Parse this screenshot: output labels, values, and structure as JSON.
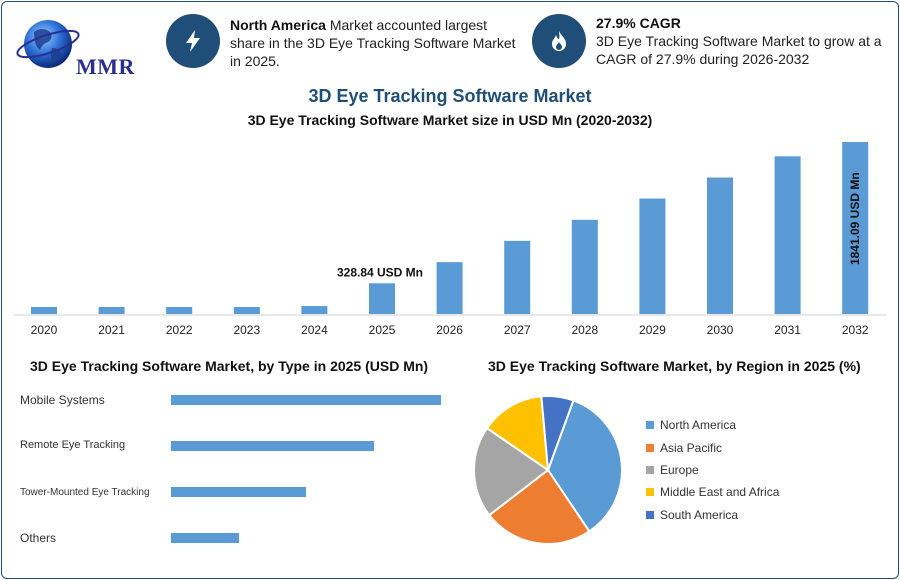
{
  "logo": {
    "text": "MMR"
  },
  "info": [
    {
      "bold": "North America",
      "text": " Market accounted largest share in the 3D Eye Tracking Software Market in 2025."
    },
    {
      "bold": "27.9% CAGR",
      "text": "3D Eye Tracking Software Market to grow at a CAGR of 27.9% during 2026-2032"
    }
  ],
  "title": "3D Eye Tracking Software Market",
  "colors": {
    "primary": "#1f4e79",
    "bar": "#5b9bd5"
  },
  "chart_data": [
    {
      "type": "bar",
      "title": "3D Eye Tracking Software Market size in USD Mn (2020-2032)",
      "categories": [
        "2020",
        "2021",
        "2022",
        "2023",
        "2024",
        "2025",
        "2026",
        "2027",
        "2028",
        "2029",
        "2030",
        "2031",
        "2032"
      ],
      "values": [
        70,
        70,
        70,
        70,
        85,
        328.84,
        555,
        783,
        1008,
        1236,
        1461,
        1688,
        1841.09
      ],
      "annotations": [
        "328.84 USD Mn",
        "1841.09 USD Mn"
      ],
      "ylim": [
        0,
        1841.09
      ]
    },
    {
      "type": "bar",
      "orientation": "horizontal",
      "title": "3D Eye Tracking Software Market, by Type in 2025 (USD Mn)",
      "categories": [
        "Mobile Systems",
        "Remote Eye Tracking",
        "Tower-Mounted Eye Tracking",
        "Others"
      ],
      "values": [
        4,
        3,
        2,
        1
      ]
    },
    {
      "type": "pie",
      "title": "3D Eye Tracking Software Market, by Region in 2025 (%)",
      "labels": [
        "North America",
        "Asia Pacific",
        "Europe",
        "Middle East and Africa",
        "South America"
      ],
      "values": [
        35,
        24,
        20,
        14,
        7
      ],
      "colors": [
        "#5b9bd5",
        "#ed7d31",
        "#a5a5a5",
        "#ffc000",
        "#4472c4"
      ]
    }
  ]
}
